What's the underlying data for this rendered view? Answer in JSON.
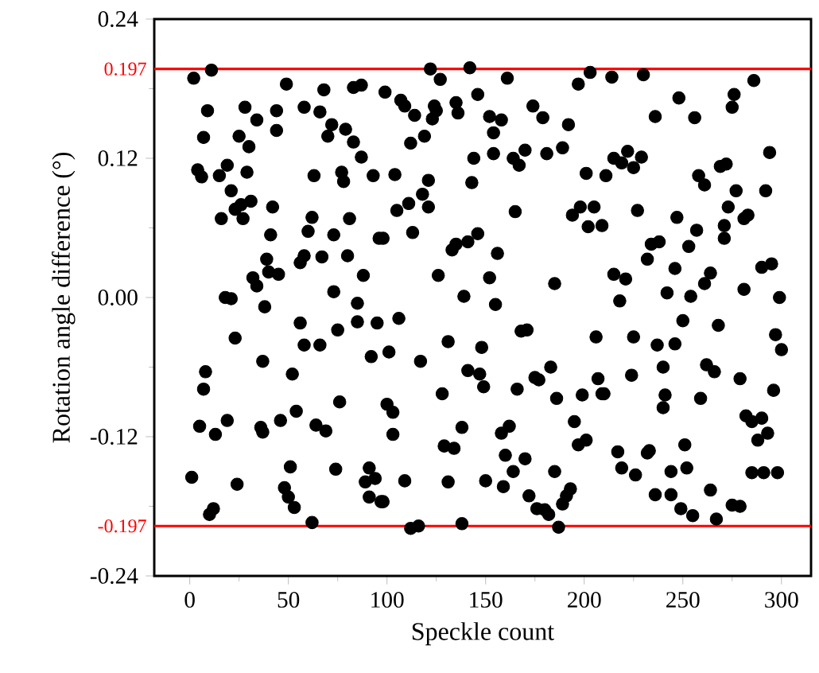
{
  "chart_data": {
    "type": "scatter",
    "xlabel": "Speckle count",
    "ylabel": "Rotation angle difference (°)",
    "xlim": [
      -18,
      315
    ],
    "ylim": [
      -0.24,
      0.24
    ],
    "xticks": [
      0,
      50,
      100,
      150,
      200,
      250,
      300
    ],
    "yticks": [
      {
        "value": -0.24,
        "label": "-0.24"
      },
      {
        "value": -0.12,
        "label": "-0.12"
      },
      {
        "value": 0,
        "label": "0.00"
      },
      {
        "value": 0.12,
        "label": "0.12"
      },
      {
        "value": 0.24,
        "label": "0.24"
      }
    ],
    "marker": "circle",
    "ref_lines": [
      {
        "axis": "y",
        "value": 0.197,
        "label": "0.197",
        "color": "#ff0000"
      },
      {
        "axis": "y",
        "value": -0.197,
        "label": "-0.197",
        "color": "#ff0000"
      }
    ],
    "series": [
      {
        "color": "#000000",
        "x": [
          2,
          11,
          49,
          68,
          83,
          87,
          9,
          28,
          44,
          58,
          66,
          34,
          7,
          25,
          30,
          44,
          72,
          70,
          79,
          83,
          87,
          4,
          6,
          15,
          19,
          29,
          63,
          77,
          78,
          93,
          21,
          31,
          23,
          26,
          16,
          27,
          42,
          62,
          60,
          73,
          81,
          41,
          96,
          39,
          58,
          56,
          67,
          80,
          32,
          40,
          45,
          34,
          88,
          18,
          21,
          38,
          73,
          85,
          122,
          127,
          142,
          161,
          203,
          197,
          99,
          107,
          109,
          114,
          124,
          125,
          123,
          135,
          136,
          146,
          152,
          158,
          154,
          174,
          179,
          192,
          112,
          119,
          144,
          154,
          164,
          167,
          170,
          181,
          189,
          104,
          121,
          118,
          105,
          111,
          121,
          143,
          165,
          201,
          194,
          198,
          205,
          202,
          209,
          98,
          113,
          133,
          135,
          141,
          146,
          156,
          126,
          152,
          139,
          155,
          185,
          214,
          230,
          286,
          248,
          276,
          275,
          236,
          256,
          294,
          215,
          222,
          225,
          229,
          219,
          211,
          258,
          261,
          269,
          272,
          277,
          292,
          227,
          247,
          257,
          273,
          271,
          271,
          281,
          283,
          234,
          238,
          253,
          232,
          246,
          264,
          261,
          290,
          295,
          215,
          221,
          218,
          242,
          254,
          281,
          299,
          56,
          75,
          23,
          58,
          66,
          85,
          95,
          92,
          37,
          8,
          52,
          7,
          76,
          54,
          5,
          13,
          19,
          36,
          37,
          46,
          64,
          69,
          1,
          24,
          51,
          48,
          50,
          53,
          12,
          10,
          62,
          74,
          91,
          89,
          94,
          91,
          97,
          106,
          101,
          117,
          131,
          148,
          168,
          171,
          141,
          147,
          149,
          128,
          100,
          103,
          103,
          166,
          175,
          177,
          183,
          186,
          199,
          195,
          201,
          197,
          206,
          207,
          209,
          138,
          129,
          134,
          158,
          162,
          160,
          170,
          164,
          159,
          185,
          193,
          191,
          189,
          172,
          176,
          180,
          182,
          187,
          150,
          131,
          109,
          98,
          112,
          116,
          138,
          250,
          268,
          225,
          237,
          246,
          297,
          300,
          240,
          262,
          266,
          224,
          210,
          279,
          241,
          240,
          259,
          296,
          282,
          285,
          290,
          288,
          293,
          217,
          219,
          226,
          232,
          233,
          251,
          244,
          252,
          236,
          244,
          264,
          249,
          255,
          267,
          275,
          279,
          285,
          291,
          298
        ],
        "values": [
          0.189,
          0.196,
          0.184,
          0.179,
          0.181,
          0.183,
          0.161,
          0.164,
          0.161,
          0.164,
          0.16,
          0.153,
          0.138,
          0.139,
          0.13,
          0.144,
          0.149,
          0.139,
          0.145,
          0.134,
          0.121,
          0.11,
          0.104,
          0.105,
          0.114,
          0.108,
          0.105,
          0.108,
          0.1,
          0.105,
          0.092,
          0.083,
          0.076,
          0.08,
          0.068,
          0.068,
          0.078,
          0.069,
          0.057,
          0.054,
          0.068,
          0.054,
          0.051,
          0.033,
          0.036,
          0.03,
          0.035,
          0.036,
          0.017,
          0.022,
          0.02,
          0.01,
          0.019,
          0.0,
          -0.001,
          -0.008,
          0.005,
          -0.005,
          0.197,
          0.188,
          0.198,
          0.189,
          0.194,
          0.184,
          0.177,
          0.17,
          0.165,
          0.157,
          0.165,
          0.161,
          0.154,
          0.168,
          0.159,
          0.175,
          0.156,
          0.153,
          0.142,
          0.165,
          0.155,
          0.149,
          0.133,
          0.139,
          0.12,
          0.124,
          0.12,
          0.114,
          0.127,
          0.124,
          0.129,
          0.106,
          0.101,
          0.089,
          0.075,
          0.081,
          0.078,
          0.099,
          0.074,
          0.107,
          0.071,
          0.078,
          0.078,
          0.061,
          0.062,
          0.051,
          0.056,
          0.041,
          0.046,
          0.048,
          0.055,
          0.038,
          0.019,
          0.017,
          0.001,
          -0.006,
          0.012,
          0.19,
          0.192,
          0.187,
          0.172,
          0.175,
          0.164,
          0.156,
          0.155,
          0.125,
          0.12,
          0.126,
          0.112,
          0.121,
          0.116,
          0.105,
          0.105,
          0.097,
          0.113,
          0.115,
          0.092,
          0.092,
          0.075,
          0.069,
          0.058,
          0.078,
          0.062,
          0.051,
          0.068,
          0.071,
          0.046,
          0.048,
          0.044,
          0.033,
          0.025,
          0.021,
          0.012,
          0.026,
          0.029,
          0.02,
          0.016,
          -0.003,
          0.004,
          0.001,
          0.007,
          0.0,
          -0.022,
          -0.028,
          -0.035,
          -0.041,
          -0.041,
          -0.021,
          -0.022,
          -0.051,
          -0.055,
          -0.064,
          -0.066,
          -0.079,
          -0.09,
          -0.098,
          -0.111,
          -0.118,
          -0.106,
          -0.112,
          -0.116,
          -0.106,
          -0.11,
          -0.115,
          -0.155,
          -0.161,
          -0.146,
          -0.164,
          -0.172,
          -0.181,
          -0.182,
          -0.187,
          -0.194,
          -0.148,
          -0.147,
          -0.159,
          -0.156,
          -0.172,
          -0.176,
          -0.018,
          -0.047,
          -0.055,
          -0.038,
          -0.043,
          -0.029,
          -0.028,
          -0.063,
          -0.066,
          -0.077,
          -0.083,
          -0.092,
          -0.099,
          -0.118,
          -0.079,
          -0.069,
          -0.071,
          -0.06,
          -0.087,
          -0.084,
          -0.107,
          -0.123,
          -0.127,
          -0.034,
          -0.07,
          -0.083,
          -0.112,
          -0.128,
          -0.13,
          -0.117,
          -0.111,
          -0.136,
          -0.139,
          -0.15,
          -0.163,
          -0.15,
          -0.165,
          -0.171,
          -0.178,
          -0.171,
          -0.182,
          -0.183,
          -0.187,
          -0.198,
          -0.158,
          -0.159,
          -0.158,
          -0.176,
          -0.199,
          -0.197,
          -0.195,
          -0.02,
          -0.024,
          -0.034,
          -0.041,
          -0.04,
          -0.032,
          -0.045,
          -0.06,
          -0.058,
          -0.064,
          -0.067,
          -0.083,
          -0.07,
          -0.084,
          -0.095,
          -0.087,
          -0.08,
          -0.102,
          -0.107,
          -0.104,
          -0.123,
          -0.117,
          -0.133,
          -0.147,
          -0.153,
          -0.134,
          -0.132,
          -0.127,
          -0.15,
          -0.147,
          -0.17,
          -0.17,
          -0.166,
          -0.182,
          -0.188,
          -0.191,
          -0.179,
          -0.18,
          -0.151,
          -0.151,
          -0.151
        ]
      }
    ]
  }
}
